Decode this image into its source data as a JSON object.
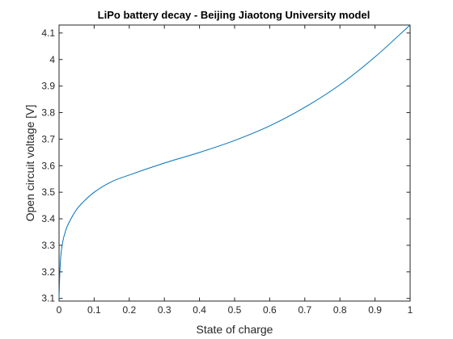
{
  "chart_data": {
    "type": "line",
    "title": "LiPo battery decay - Beijing Jiaotong University model",
    "xlabel": "State of charge",
    "ylabel": "Open circuit voltage [V]",
    "xlim": [
      0,
      1
    ],
    "ylim": [
      3.09,
      4.13
    ],
    "x_ticks": [
      "0",
      "0.1",
      "0.2",
      "0.3",
      "0.4",
      "0.5",
      "0.6",
      "0.7",
      "0.8",
      "0.9",
      "1"
    ],
    "y_ticks": [
      "3.1",
      "3.2",
      "3.3",
      "3.4",
      "3.5",
      "3.6",
      "3.7",
      "3.8",
      "3.9",
      "4",
      "4.1"
    ],
    "grid": false,
    "legend": "none",
    "series": [
      {
        "color": "#0072bd",
        "x": [
          0.0,
          0.002,
          0.005,
          0.01,
          0.02,
          0.03,
          0.05,
          0.07,
          0.1,
          0.15,
          0.2,
          0.3,
          0.4,
          0.5,
          0.6,
          0.7,
          0.8,
          0.9,
          1.0
        ],
        "y": [
          3.1,
          3.19,
          3.26,
          3.31,
          3.36,
          3.39,
          3.435,
          3.465,
          3.5,
          3.54,
          3.565,
          3.61,
          3.65,
          3.695,
          3.75,
          3.82,
          3.905,
          4.01,
          4.13
        ]
      }
    ]
  }
}
